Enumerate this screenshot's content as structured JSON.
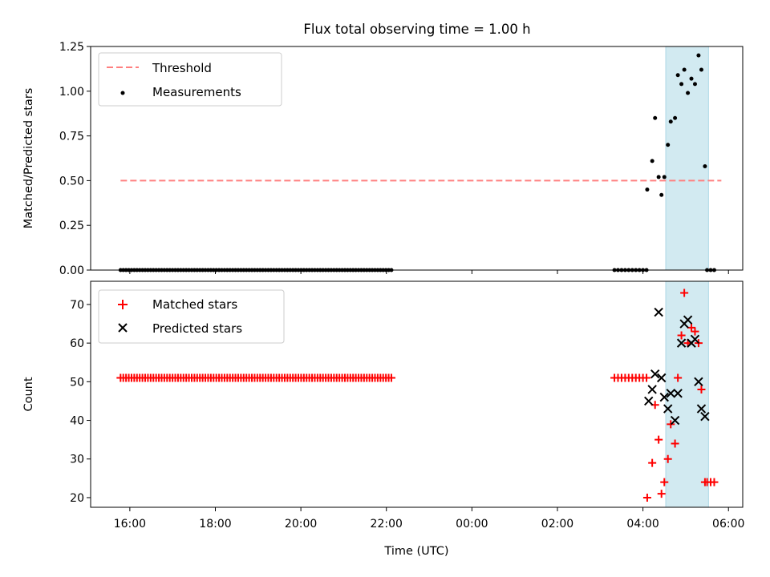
{
  "title": "Flux total observing time = 1.00 h",
  "colors": {
    "threshold": "#ff7f7f",
    "measurement": "#000000",
    "matched": "#ff0000",
    "predicted": "#000000",
    "span": "#add8e6"
  },
  "chart_data": [
    {
      "type": "scatter",
      "ylabel": "Matched/Predicted stars",
      "xlabel": "",
      "xlim": [
        "15:05",
        "06:20"
      ],
      "ylim": [
        0,
        1.25
      ],
      "yticks": [
        0.0,
        0.25,
        0.5,
        0.75,
        1.0,
        1.25
      ],
      "ytick_labels": [
        "0.00",
        "0.25",
        "0.50",
        "0.75",
        "1.00",
        "1.25"
      ],
      "shaded_span": [
        "04:32",
        "05:32"
      ],
      "legend": {
        "position": "top-left",
        "entries": [
          {
            "label": "Threshold",
            "kind": "dashed-line"
          },
          {
            "label": "Measurements",
            "kind": "dot"
          }
        ]
      },
      "threshold": {
        "value": 0.5,
        "x_range": [
          "15:47",
          "05:50"
        ]
      },
      "zero_runs": [
        {
          "start": "15:47",
          "end": "22:07",
          "count": 100
        },
        {
          "start": "03:20",
          "end": "04:05",
          "count": 10
        }
      ],
      "measurements": [
        [
          "04:06",
          0.45
        ],
        [
          "04:13",
          0.61
        ],
        [
          "04:17",
          0.85
        ],
        [
          "04:22",
          0.52
        ],
        [
          "04:26",
          0.42
        ],
        [
          "04:30",
          0.52
        ],
        [
          "04:35",
          0.7
        ],
        [
          "04:39",
          0.83
        ],
        [
          "04:45",
          0.85
        ],
        [
          "04:49",
          1.09
        ],
        [
          "04:54",
          1.04
        ],
        [
          "04:58",
          1.12
        ],
        [
          "05:03",
          0.99
        ],
        [
          "05:08",
          1.07
        ],
        [
          "05:13",
          1.04
        ],
        [
          "05:18",
          1.2
        ],
        [
          "05:22",
          1.12
        ],
        [
          "05:27",
          0.58
        ],
        [
          "05:30",
          0.0
        ],
        [
          "05:35",
          0.0
        ],
        [
          "05:40",
          0.0
        ]
      ]
    },
    {
      "type": "scatter",
      "ylabel": "Count",
      "xlabel": "Time (UTC)",
      "xlim": [
        "15:05",
        "06:20"
      ],
      "ylim": [
        17.5,
        76
      ],
      "yticks": [
        20,
        30,
        40,
        50,
        60,
        70
      ],
      "ytick_labels": [
        "20",
        "30",
        "40",
        "50",
        "60",
        "70"
      ],
      "xticks": [
        "16:00",
        "18:00",
        "20:00",
        "22:00",
        "00:00",
        "02:00",
        "04:00",
        "06:00"
      ],
      "shaded_span": [
        "04:32",
        "05:32"
      ],
      "legend": {
        "position": "top-left",
        "entries": [
          {
            "label": "Matched stars",
            "kind": "plus"
          },
          {
            "label": "Predicted stars",
            "kind": "cross"
          }
        ]
      },
      "matched_runs": [
        {
          "start": "15:47",
          "end": "22:07",
          "count": 100,
          "value": 51
        },
        {
          "start": "03:20",
          "end": "04:05",
          "count": 10,
          "value": 51
        }
      ],
      "matched_stars": [
        [
          "04:06",
          20
        ],
        [
          "04:13",
          29
        ],
        [
          "04:17",
          44
        ],
        [
          "04:22",
          35
        ],
        [
          "04:26",
          21
        ],
        [
          "04:30",
          24
        ],
        [
          "04:35",
          30
        ],
        [
          "04:39",
          39
        ],
        [
          "04:45",
          34
        ],
        [
          "04:49",
          51
        ],
        [
          "04:54",
          62
        ],
        [
          "04:58",
          73
        ],
        [
          "05:03",
          60
        ],
        [
          "05:08",
          64
        ],
        [
          "05:13",
          63
        ],
        [
          "05:18",
          60
        ],
        [
          "05:22",
          48
        ],
        [
          "05:27",
          24
        ],
        [
          "05:30",
          24
        ],
        [
          "05:35",
          24
        ],
        [
          "05:40",
          24
        ]
      ],
      "predicted_stars": [
        [
          "04:08",
          45
        ],
        [
          "04:13",
          48
        ],
        [
          "04:17",
          52
        ],
        [
          "04:22",
          68
        ],
        [
          "04:26",
          51
        ],
        [
          "04:30",
          46
        ],
        [
          "04:35",
          43
        ],
        [
          "04:39",
          47
        ],
        [
          "04:45",
          40
        ],
        [
          "04:49",
          47
        ],
        [
          "04:54",
          60
        ],
        [
          "04:58",
          65
        ],
        [
          "05:03",
          66
        ],
        [
          "05:08",
          60
        ],
        [
          "05:13",
          61
        ],
        [
          "05:18",
          50
        ],
        [
          "05:22",
          43
        ],
        [
          "05:27",
          41
        ]
      ]
    }
  ]
}
